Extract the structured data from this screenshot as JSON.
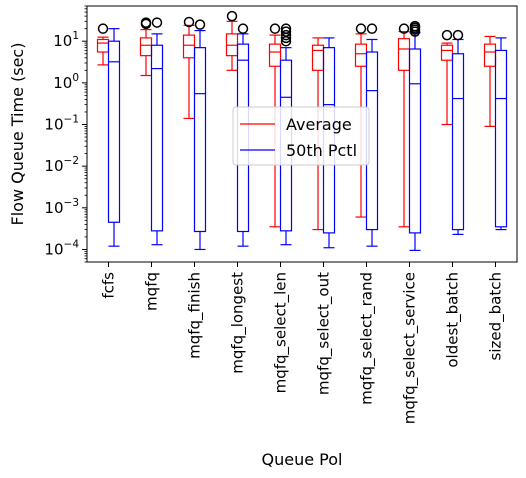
{
  "chart_data": {
    "type": "boxplot",
    "title": "",
    "xlabel": "Queue Pol",
    "ylabel": "Flow Queue Time (sec)",
    "yscale": "log",
    "ylim": [
      5e-05,
      70
    ],
    "yticks": [
      {
        "value": 0.0001,
        "base": "10",
        "exp": "−4"
      },
      {
        "value": 0.001,
        "base": "10",
        "exp": "−3"
      },
      {
        "value": 0.01,
        "base": "10",
        "exp": "−2"
      },
      {
        "value": 0.1,
        "base": "10",
        "exp": "−1"
      },
      {
        "value": 1,
        "base": "10",
        "exp": "0"
      },
      {
        "value": 10,
        "base": "10",
        "exp": "1"
      }
    ],
    "categories": [
      "fcfs",
      "mqfq",
      "mqfq_finish",
      "mqfq_longest",
      "mqfq_select_len",
      "mqfq_select_out",
      "mqfq_select_rand",
      "mqfq_select_service",
      "oldest_batch",
      "sized_batch"
    ],
    "legend": {
      "position": "center",
      "entries": [
        "Average",
        "50th Pctl"
      ]
    },
    "series": [
      {
        "name": "Average",
        "color": "#ff0000",
        "boxes": [
          {
            "whislo": 2.7,
            "q1": 5.5,
            "med": 9.0,
            "q3": 11.0,
            "whishi": 12.5,
            "fliers": [
              20
            ]
          },
          {
            "whislo": 1.5,
            "q1": 4.5,
            "med": 8.0,
            "q3": 12.0,
            "whishi": 19,
            "fliers": [
              26,
              28
            ]
          },
          {
            "whislo": 0.14,
            "q1": 4.0,
            "med": 8.0,
            "q3": 14.0,
            "whishi": 24,
            "fliers": [
              29
            ]
          },
          {
            "whislo": 2.0,
            "q1": 4.5,
            "med": 8.0,
            "q3": 15.0,
            "whishi": 30,
            "fliers": [
              40
            ]
          },
          {
            "whislo": 0.00035,
            "q1": 2.5,
            "med": 5.5,
            "q3": 8.5,
            "whishi": 14,
            "fliers": [
              20
            ]
          },
          {
            "whislo": 0.0003,
            "q1": 2.0,
            "med": 6.0,
            "q3": 8.0,
            "whishi": 12,
            "fliers": []
          },
          {
            "whislo": 0.0006,
            "q1": 2.5,
            "med": 5.0,
            "q3": 8.5,
            "whishi": 15,
            "fliers": [
              20
            ]
          },
          {
            "whislo": 0.00035,
            "q1": 2.0,
            "med": 6.5,
            "q3": 11.5,
            "whishi": 17,
            "fliers": [
              20
            ]
          },
          {
            "whislo": 0.1,
            "q1": 3.5,
            "med": 6.0,
            "q3": 8.0,
            "whishi": 9.0,
            "fliers": [
              14
            ]
          },
          {
            "whislo": 0.09,
            "q1": 2.5,
            "med": 5.5,
            "q3": 8.5,
            "whishi": 13,
            "fliers": []
          }
        ]
      },
      {
        "name": "50th Pctl",
        "color": "#0000ff",
        "boxes": [
          {
            "whislo": 0.00012,
            "q1": 0.00045,
            "med": 3.2,
            "q3": 10.0,
            "whishi": 20,
            "fliers": []
          },
          {
            "whislo": 0.00013,
            "q1": 0.00028,
            "med": 2.2,
            "q3": 8.0,
            "whishi": 15,
            "fliers": [
              28
            ]
          },
          {
            "whislo": 0.0001,
            "q1": 0.00027,
            "med": 0.55,
            "q3": 7.0,
            "whishi": 18,
            "fliers": [
              25
            ]
          },
          {
            "whislo": 0.00012,
            "q1": 0.00027,
            "med": 3.5,
            "q3": 8.5,
            "whishi": 15,
            "fliers": [
              20
            ]
          },
          {
            "whislo": 0.00013,
            "q1": 0.00028,
            "med": 0.45,
            "q3": 3.5,
            "whishi": 7.0,
            "fliers": [
              10,
              12,
              14,
              17,
              20
            ]
          },
          {
            "whislo": 0.00011,
            "q1": 0.00025,
            "med": 0.3,
            "q3": 7.0,
            "whishi": 12,
            "fliers": []
          },
          {
            "whislo": 0.00012,
            "q1": 0.0003,
            "med": 0.65,
            "q3": 5.5,
            "whishi": 11,
            "fliers": [
              20
            ]
          },
          {
            "whislo": 9.5e-05,
            "q1": 0.00025,
            "med": 0.95,
            "q3": 6.5,
            "whishi": 16,
            "fliers": [
              17,
              19,
              21,
              23
            ]
          },
          {
            "whislo": 0.00023,
            "q1": 0.0003,
            "med": 0.42,
            "q3": 5.0,
            "whishi": 11,
            "fliers": [
              14
            ]
          },
          {
            "whislo": 0.0003,
            "q1": 0.00035,
            "med": 0.42,
            "q3": 6.0,
            "whishi": 12,
            "fliers": []
          }
        ]
      }
    ]
  }
}
